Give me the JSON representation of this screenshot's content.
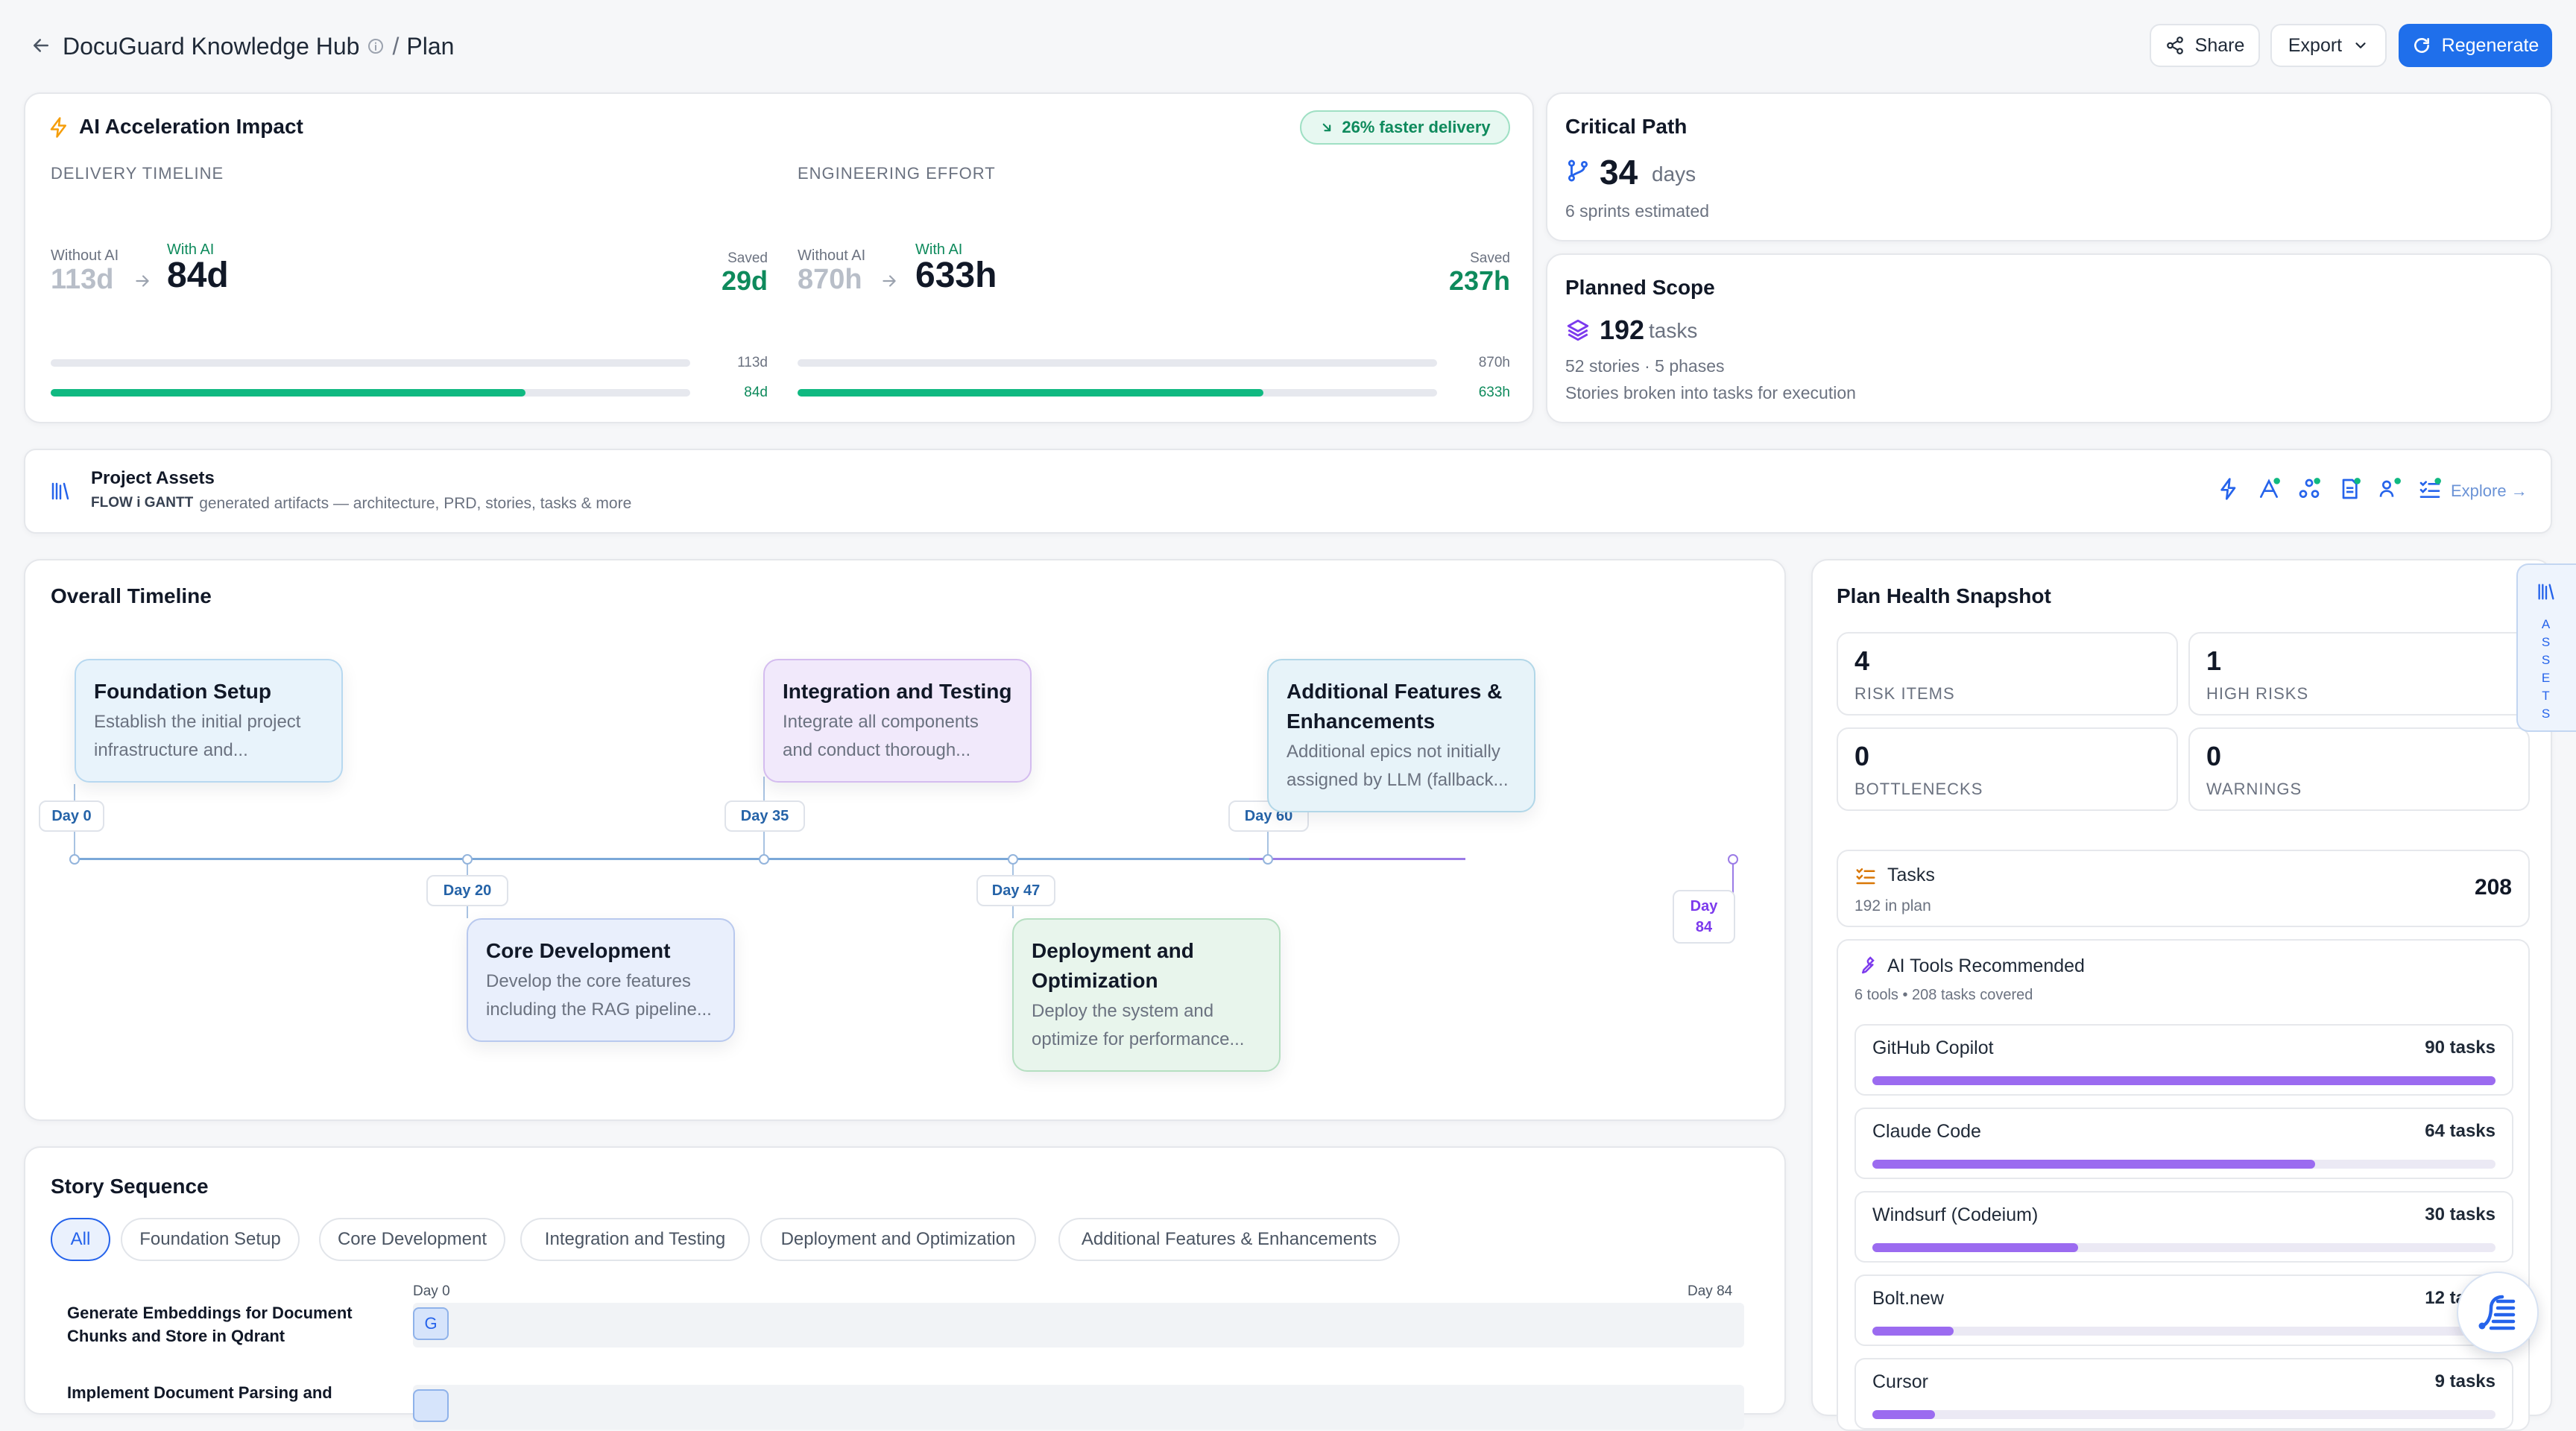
{
  "header": {
    "title": "DocuGuard Knowledge Hub",
    "separator": "/",
    "section": "Plan",
    "share_label": "Share",
    "export_label": "Export",
    "regenerate_label": "Regenerate"
  },
  "impact": {
    "title": "AI Acceleration Impact",
    "badge": "26% faster delivery",
    "timeline": {
      "label": "DELIVERY TIMELINE",
      "without_label": "Without AI",
      "without_value": "113d",
      "with_label": "With AI",
      "with_value": "84d",
      "saved_label": "Saved",
      "saved_value": "29d",
      "bar_without_label": "113d",
      "bar_with_label": "84d",
      "with_fraction": 0.743
    },
    "effort": {
      "label": "ENGINEERING EFFORT",
      "without_label": "Without AI",
      "without_value": "870h",
      "with_label": "With AI",
      "with_value": "633h",
      "saved_label": "Saved",
      "saved_value": "237h",
      "bar_without_label": "870h",
      "bar_with_label": "633h",
      "with_fraction": 0.728
    }
  },
  "critical_path": {
    "title": "Critical Path",
    "value": "34",
    "unit": "days",
    "sub": "6 sprints estimated"
  },
  "scope": {
    "title": "Planned Scope",
    "value": "192",
    "unit": "tasks",
    "line1": "52 stories · 5 phases",
    "line2": "Stories broken into tasks for execution"
  },
  "assets": {
    "title": "Project Assets",
    "brand": "FLOW i GANTT",
    "desc": "generated artifacts — architecture, PRD, stories, tasks & more",
    "explore_label": "Explore →",
    "side_tab_label": "ASSETS"
  },
  "timeline": {
    "title": "Overall Timeline",
    "phases": [
      {
        "title": "Foundation Setup",
        "desc": "Establish the initial project infrastructure and...",
        "day": "Day 0"
      },
      {
        "title": "Core Development",
        "desc": "Develop the core features including the RAG pipeline...",
        "day": "Day 20"
      },
      {
        "title": "Integration and Testing",
        "desc": "Integrate all components and conduct thorough...",
        "day": "Day 35"
      },
      {
        "title": "Deployment and Optimization",
        "desc": "Deploy the system and optimize for performance...",
        "day": "Day 47"
      },
      {
        "title": "Additional Features & Enhancements",
        "desc": "Additional epics not initially assigned by LLM (fallback...",
        "day": "Day 60"
      }
    ],
    "end_day_line1": "Day",
    "end_day_line2": "84"
  },
  "health": {
    "title": "Plan Health Snapshot",
    "tiles": [
      {
        "value": "4",
        "label": "RISK ITEMS"
      },
      {
        "value": "1",
        "label": "HIGH RISKS"
      },
      {
        "value": "0",
        "label": "BOTTLENECKS"
      },
      {
        "value": "0",
        "label": "WARNINGS"
      }
    ],
    "tasks_label": "Tasks",
    "tasks_sub": "192 in plan",
    "tasks_count": "208",
    "tools_title": "AI Tools Recommended",
    "tools_sub": "6 tools • 208 tasks covered",
    "tools": [
      {
        "name": "GitHub Copilot",
        "count": "90 tasks",
        "fraction": 1.0
      },
      {
        "name": "Claude Code",
        "count": "64 tasks",
        "fraction": 0.71
      },
      {
        "name": "Windsurf (Codeium)",
        "count": "30 tasks",
        "fraction": 0.33
      },
      {
        "name": "Bolt.new",
        "count": "12 tasks",
        "fraction": 0.13
      },
      {
        "name": "Cursor",
        "count": "9 tasks",
        "fraction": 0.1
      }
    ]
  },
  "stories": {
    "title": "Story Sequence",
    "filters": [
      "All",
      "Foundation Setup",
      "Core Development",
      "Integration and Testing",
      "Deployment and Optimization",
      "Additional Features & Enhancements"
    ],
    "axis_start": "Day 0",
    "axis_end": "Day 84",
    "rows": [
      {
        "name": "Generate Embeddings for Document Chunks and Store in Qdrant",
        "marker": "G"
      },
      {
        "name": "Implement Document Parsing and",
        "marker": ""
      }
    ]
  },
  "colors": {
    "accent": "#1f6feb",
    "success": "#10b981",
    "tool_bar": "#9b6bf0"
  }
}
